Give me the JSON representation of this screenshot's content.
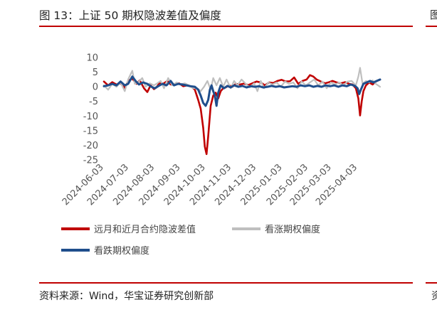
{
  "header": {
    "title": "图 13：上证 50 期权隐波差值及偏度",
    "edge_glyph": "图"
  },
  "footer": {
    "source": "资料来源：Wind，华宝证券研究创新部",
    "edge_glyph": "资"
  },
  "chart_data": {
    "type": "line",
    "title": "",
    "xlabel": "",
    "ylabel": "",
    "ylim": [
      -25,
      10
    ],
    "yticks": [
      10,
      5,
      0,
      -5,
      -10,
      -15,
      -20,
      -25
    ],
    "xlim": [
      "2024-06-03",
      "2025-04-30"
    ],
    "xticks": [
      "2024-06-03",
      "2024-07-03",
      "2024-08-03",
      "2024-09-03",
      "2024-10-03",
      "2024-11-03",
      "2024-12-03",
      "2025-01-03",
      "2025-02-03",
      "2025-03-03",
      "2025-04-03"
    ],
    "legend_position": "bottom",
    "grid": false,
    "series": [
      {
        "name": "远月和近月合约隐波差值",
        "color": "#c00000",
        "points": [
          [
            "2024-06-03",
            1.8
          ],
          [
            "2024-06-08",
            0.5
          ],
          [
            "2024-06-13",
            1.6
          ],
          [
            "2024-06-18",
            0.8
          ],
          [
            "2024-06-23",
            1.2
          ],
          [
            "2024-06-28",
            -0.5
          ],
          [
            "2024-07-02",
            2.0
          ],
          [
            "2024-07-07",
            2.8
          ],
          [
            "2024-07-12",
            1.0
          ],
          [
            "2024-07-16",
            2.2
          ],
          [
            "2024-07-21",
            -0.5
          ],
          [
            "2024-07-25",
            -1.8
          ],
          [
            "2024-07-29",
            0.5
          ],
          [
            "2024-08-02",
            -0.8
          ],
          [
            "2024-08-05",
            -0.2
          ],
          [
            "2024-08-09",
            1.4
          ],
          [
            "2024-08-13",
            1.0
          ],
          [
            "2024-08-18",
            2.0
          ],
          [
            "2024-08-22",
            0.8
          ],
          [
            "2024-08-27",
            0.9
          ],
          [
            "2024-09-01",
            1.2
          ],
          [
            "2024-09-06",
            0.2
          ],
          [
            "2024-09-11",
            0.5
          ],
          [
            "2024-09-16",
            0.0
          ],
          [
            "2024-09-20",
            -1.0
          ],
          [
            "2024-09-24",
            -4.5
          ],
          [
            "2024-09-27",
            -7.5
          ],
          [
            "2024-09-30",
            -14.0
          ],
          [
            "2024-10-02",
            -20.5
          ],
          [
            "2024-10-04",
            -23.0
          ],
          [
            "2024-10-06",
            -17.0
          ],
          [
            "2024-10-09",
            -6.5
          ],
          [
            "2024-10-12",
            -3.0
          ],
          [
            "2024-10-15",
            -2.0
          ],
          [
            "2024-10-18",
            -4.0
          ],
          [
            "2024-10-21",
            -1.5
          ],
          [
            "2024-10-24",
            -0.5
          ],
          [
            "2024-10-27",
            -0.2
          ],
          [
            "2024-10-31",
            0.5
          ],
          [
            "2024-11-04",
            0.0
          ],
          [
            "2024-11-08",
            1.0
          ],
          [
            "2024-11-13",
            0.8
          ],
          [
            "2024-11-18",
            1.1
          ],
          [
            "2024-11-23",
            0.6
          ],
          [
            "2024-11-28",
            1.2
          ],
          [
            "2024-12-03",
            1.8
          ],
          [
            "2024-12-08",
            1.5
          ],
          [
            "2024-12-13",
            0.5
          ],
          [
            "2024-12-18",
            1.5
          ],
          [
            "2024-12-23",
            1.3
          ],
          [
            "2024-12-28",
            2.0
          ],
          [
            "2025-01-02",
            2.4
          ],
          [
            "2025-01-07",
            1.8
          ],
          [
            "2025-01-12",
            1.9
          ],
          [
            "2025-01-17",
            3.2
          ],
          [
            "2025-01-22",
            1.0
          ],
          [
            "2025-01-27",
            2.0
          ],
          [
            "2025-02-01",
            2.5
          ],
          [
            "2025-02-05",
            4.0
          ],
          [
            "2025-02-09",
            3.5
          ],
          [
            "2025-02-13",
            2.5
          ],
          [
            "2025-02-18",
            1.8
          ],
          [
            "2025-02-23",
            1.2
          ],
          [
            "2025-02-28",
            1.6
          ],
          [
            "2025-03-04",
            2.0
          ],
          [
            "2025-03-09",
            1.5
          ],
          [
            "2025-03-14",
            1.2
          ],
          [
            "2025-03-19",
            1.6
          ],
          [
            "2025-03-24",
            1.0
          ],
          [
            "2025-03-28",
            0.8
          ],
          [
            "2025-04-01",
            -0.5
          ],
          [
            "2025-04-04",
            -4.0
          ],
          [
            "2025-04-06",
            -9.8
          ],
          [
            "2025-04-08",
            -5.0
          ],
          [
            "2025-04-10",
            -1.5
          ],
          [
            "2025-04-13",
            0.5
          ],
          [
            "2025-04-17",
            1.5
          ],
          [
            "2025-04-21",
            0.8
          ],
          [
            "2025-04-25",
            1.8
          ],
          [
            "2025-04-30",
            2.5
          ]
        ]
      },
      {
        "name": "看涨期权偏度",
        "color": "#bfbfbf",
        "points": [
          [
            "2024-06-03",
            0.5
          ],
          [
            "2024-06-08",
            -1.0
          ],
          [
            "2024-06-13",
            1.0
          ],
          [
            "2024-06-18",
            0.0
          ],
          [
            "2024-06-23",
            1.5
          ],
          [
            "2024-06-28",
            -1.5
          ],
          [
            "2024-07-02",
            2.5
          ],
          [
            "2024-07-07",
            5.5
          ],
          [
            "2024-07-10",
            1.0
          ],
          [
            "2024-07-14",
            1.5
          ],
          [
            "2024-07-19",
            3.0
          ],
          [
            "2024-07-23",
            0.0
          ],
          [
            "2024-07-28",
            1.2
          ],
          [
            "2024-08-02",
            0.5
          ],
          [
            "2024-08-05",
            1.0
          ],
          [
            "2024-08-10",
            2.0
          ],
          [
            "2024-08-14",
            -0.5
          ],
          [
            "2024-08-19",
            3.0
          ],
          [
            "2024-08-24",
            0.5
          ],
          [
            "2024-08-29",
            1.5
          ],
          [
            "2024-09-03",
            0.8
          ],
          [
            "2024-09-08",
            1.2
          ],
          [
            "2024-09-13",
            0.5
          ],
          [
            "2024-09-18",
            -0.5
          ],
          [
            "2024-09-23",
            -0.5
          ],
          [
            "2024-09-27",
            -1.5
          ],
          [
            "2024-10-01",
            0.0
          ],
          [
            "2024-10-05",
            2.0
          ],
          [
            "2024-10-09",
            -1.0
          ],
          [
            "2024-10-12",
            3.0
          ],
          [
            "2024-10-16",
            0.5
          ],
          [
            "2024-10-20",
            3.0
          ],
          [
            "2024-10-24",
            0.0
          ],
          [
            "2024-10-28",
            2.5
          ],
          [
            "2024-11-02",
            -0.5
          ],
          [
            "2024-11-06",
            2.0
          ],
          [
            "2024-11-10",
            0.5
          ],
          [
            "2024-11-15",
            2.5
          ],
          [
            "2024-11-20",
            1.0
          ],
          [
            "2024-11-25",
            -0.2
          ],
          [
            "2024-11-30",
            1.2
          ],
          [
            "2024-12-04",
            -1.5
          ],
          [
            "2024-12-08",
            2.0
          ],
          [
            "2024-12-12",
            -0.5
          ],
          [
            "2024-12-17",
            1.5
          ],
          [
            "2024-12-22",
            0.8
          ],
          [
            "2024-12-27",
            1.5
          ],
          [
            "2025-01-01",
            0.0
          ],
          [
            "2025-01-06",
            1.8
          ],
          [
            "2025-01-11",
            1.0
          ],
          [
            "2025-01-16",
            1.5
          ],
          [
            "2025-01-21",
            -0.5
          ],
          [
            "2025-01-26",
            1.8
          ],
          [
            "2025-01-31",
            0.5
          ],
          [
            "2025-02-05",
            1.5
          ],
          [
            "2025-02-10",
            2.5
          ],
          [
            "2025-02-15",
            0.5
          ],
          [
            "2025-02-20",
            1.8
          ],
          [
            "2025-02-25",
            -0.5
          ],
          [
            "2025-03-02",
            1.5
          ],
          [
            "2025-03-07",
            0.8
          ],
          [
            "2025-03-12",
            1.5
          ],
          [
            "2025-03-17",
            0.5
          ],
          [
            "2025-03-22",
            1.8
          ],
          [
            "2025-03-27",
            2.0
          ],
          [
            "2025-04-01",
            0.5
          ],
          [
            "2025-04-04",
            3.5
          ],
          [
            "2025-04-06",
            6.5
          ],
          [
            "2025-04-09",
            1.0
          ],
          [
            "2025-04-13",
            2.0
          ],
          [
            "2025-04-17",
            1.5
          ],
          [
            "2025-04-21",
            2.2
          ],
          [
            "2025-04-25",
            1.0
          ],
          [
            "2025-04-30",
            0.0
          ]
        ]
      },
      {
        "name": "看跌期权偏度",
        "color": "#1f4e8c",
        "points": [
          [
            "2024-06-03",
            0.2
          ],
          [
            "2024-06-08",
            0.5
          ],
          [
            "2024-06-13",
            1.0
          ],
          [
            "2024-06-18",
            0.5
          ],
          [
            "2024-06-23",
            1.8
          ],
          [
            "2024-06-28",
            0.5
          ],
          [
            "2024-07-02",
            1.0
          ],
          [
            "2024-07-07",
            3.5
          ],
          [
            "2024-07-11",
            2.0
          ],
          [
            "2024-07-15",
            0.8
          ],
          [
            "2024-07-20",
            1.5
          ],
          [
            "2024-07-25",
            1.0
          ],
          [
            "2024-07-30",
            0.0
          ],
          [
            "2024-08-03",
            -0.5
          ],
          [
            "2024-08-07",
            0.2
          ],
          [
            "2024-08-12",
            1.0
          ],
          [
            "2024-08-17",
            0.5
          ],
          [
            "2024-08-22",
            2.0
          ],
          [
            "2024-08-26",
            0.5
          ],
          [
            "2024-08-31",
            1.0
          ],
          [
            "2024-09-05",
            0.8
          ],
          [
            "2024-09-10",
            0.5
          ],
          [
            "2024-09-15",
            0.2
          ],
          [
            "2024-09-20",
            0.0
          ],
          [
            "2024-09-24",
            -1.0
          ],
          [
            "2024-09-27",
            -3.0
          ],
          [
            "2024-09-30",
            -5.5
          ],
          [
            "2024-10-03",
            -6.5
          ],
          [
            "2024-10-06",
            -4.5
          ],
          [
            "2024-10-08",
            -1.0
          ],
          [
            "2024-10-10",
            0.5
          ],
          [
            "2024-10-12",
            -1.5
          ],
          [
            "2024-10-14",
            -3.0
          ],
          [
            "2024-10-16",
            -6.5
          ],
          [
            "2024-10-18",
            -2.0
          ],
          [
            "2024-10-21",
            0.5
          ],
          [
            "2024-10-25",
            -0.5
          ],
          [
            "2024-10-29",
            0.3
          ],
          [
            "2024-11-02",
            -0.2
          ],
          [
            "2024-11-06",
            0.5
          ],
          [
            "2024-11-11",
            0.0
          ],
          [
            "2024-11-16",
            0.3
          ],
          [
            "2024-11-21",
            -0.2
          ],
          [
            "2024-11-26",
            0.2
          ],
          [
            "2024-12-01",
            0.0
          ],
          [
            "2024-12-06",
            0.2
          ],
          [
            "2024-12-11",
            -0.2
          ],
          [
            "2024-12-16",
            0.0
          ],
          [
            "2024-12-21",
            0.3
          ],
          [
            "2024-12-26",
            0.0
          ],
          [
            "2024-12-31",
            0.2
          ],
          [
            "2025-01-05",
            -0.2
          ],
          [
            "2025-01-10",
            0.0
          ],
          [
            "2025-01-15",
            0.2
          ],
          [
            "2025-01-20",
            0.0
          ],
          [
            "2025-01-25",
            0.5
          ],
          [
            "2025-01-30",
            0.2
          ],
          [
            "2025-02-04",
            0.5
          ],
          [
            "2025-02-09",
            0.0
          ],
          [
            "2025-02-14",
            0.3
          ],
          [
            "2025-02-19",
            0.0
          ],
          [
            "2025-02-24",
            0.5
          ],
          [
            "2025-03-01",
            0.2
          ],
          [
            "2025-03-06",
            0.5
          ],
          [
            "2025-03-11",
            0.0
          ],
          [
            "2025-03-16",
            0.5
          ],
          [
            "2025-03-21",
            0.2
          ],
          [
            "2025-03-26",
            0.8
          ],
          [
            "2025-03-31",
            0.3
          ],
          [
            "2025-04-03",
            -0.5
          ],
          [
            "2025-04-05",
            -2.5
          ],
          [
            "2025-04-07",
            -1.0
          ],
          [
            "2025-04-10",
            1.0
          ],
          [
            "2025-04-14",
            1.5
          ],
          [
            "2025-04-18",
            2.0
          ],
          [
            "2025-04-22",
            1.5
          ],
          [
            "2025-04-26",
            2.0
          ],
          [
            "2025-04-30",
            2.5
          ]
        ]
      }
    ]
  }
}
